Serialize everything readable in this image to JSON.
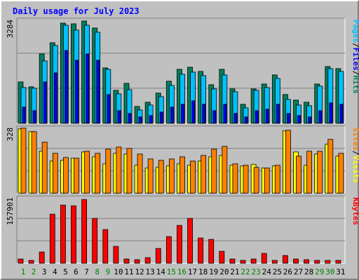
{
  "chart_data": {
    "type": "bar",
    "title": "Daily usage for July 2023",
    "categories": [
      "1",
      "2",
      "3",
      "4",
      "5",
      "6",
      "7",
      "8",
      "9",
      "10",
      "11",
      "12",
      "13",
      "14",
      "15",
      "16",
      "17",
      "18",
      "19",
      "20",
      "21",
      "22",
      "23",
      "24",
      "25",
      "26",
      "27",
      "28",
      "29",
      "30",
      "31"
    ],
    "weekend_days": [
      "1",
      "2",
      "8",
      "9",
      "15",
      "16",
      "22",
      "23",
      "29",
      "30"
    ],
    "colors": {
      "weekday_label": "#000000",
      "weekend_label": "#008000",
      "hits": "#00805c",
      "files": "#00c0ff",
      "pages": "#0000ff",
      "visits": "#ffff00",
      "sites": "#ff8000",
      "kbytes": "#ff0000",
      "title": "#0000ff"
    },
    "panels": [
      {
        "max_label": "3284",
        "ylim": [
          0,
          3284
        ],
        "side_labels": [
          "Pages",
          "/",
          "Files",
          "/",
          "Hits"
        ],
        "side_colors": [
          "#00c0ff",
          "#000000",
          "#0000ff",
          "#000000",
          "#00805c"
        ],
        "series": [
          {
            "name": "Hits",
            "color": "#00805c",
            "values": [
              1300,
              1160,
              2200,
              2560,
              3180,
              3160,
              3230,
              3010,
              1760,
              1040,
              1270,
              540,
              660,
              950,
              1330,
              1700,
              1770,
              1650,
              1230,
              1710,
              1090,
              600,
              1090,
              1250,
              1520,
              910,
              740,
              660,
              1240,
              1800,
              1720
            ]
          },
          {
            "name": "Files",
            "color": "#00c0ff",
            "values": [
              1140,
              1100,
              1980,
              2460,
              3100,
              2950,
              3100,
              2880,
              1700,
              940,
              1070,
              430,
              580,
              840,
              1200,
              1560,
              1620,
              1500,
              1090,
              1530,
              1000,
              490,
              1050,
              1130,
              1420,
              760,
              580,
              560,
              1180,
              1730,
              1640
            ]
          },
          {
            "name": "Pages",
            "color": "#0000ff",
            "values": [
              500,
              400,
              1300,
              1600,
              2300,
              2000,
              2200,
              2000,
              900,
              400,
              300,
              200,
              250,
              350,
              500,
              600,
              700,
              600,
              400,
              600,
              300,
              200,
              400,
              450,
              600,
              300,
              250,
              200,
              400,
              650,
              600
            ]
          }
        ]
      },
      {
        "max_label": "328",
        "ylim": [
          0,
          328
        ],
        "side_labels": [
          "Sites",
          "/",
          "Visits"
        ],
        "side_colors": [
          "#ff8000",
          "#000000",
          "#ffff00"
        ],
        "series": [
          {
            "name": "Visits",
            "color": "#ffff00",
            "values": [
              320,
              308,
              210,
              160,
              165,
              175,
              205,
              180,
              145,
              200,
              195,
              140,
              125,
              130,
              135,
              145,
              140,
              160,
              180,
              190,
              140,
              135,
              142,
              125,
              135,
              312,
              205,
              140,
              195,
              245,
              185
            ]
          },
          {
            "name": "Sites",
            "color": "#ff8000",
            "values": [
              326,
              306,
              255,
              200,
              178,
              175,
              210,
              200,
              220,
              230,
              225,
              195,
              170,
              165,
              170,
              180,
              160,
              190,
              220,
              235,
              145,
              140,
              130,
              125,
              140,
              315,
              185,
              210,
              210,
              270,
              200
            ]
          }
        ]
      },
      {
        "max_label": "157901",
        "ylim": [
          0,
          157901
        ],
        "side_labels": [
          "KBytes"
        ],
        "side_colors": [
          "#ff0000"
        ],
        "series": [
          {
            "name": "KBytes",
            "color": "#ff0000",
            "values": [
              9400,
              7200,
              27000,
              118000,
              139000,
              137000,
              153000,
              108000,
              80000,
              40000,
              9800,
              7800,
              14000,
              36000,
              63000,
              90000,
              108000,
              60000,
              57000,
              28000,
              9800,
              7200,
              9900,
              24000,
              6200,
              18000,
              10200,
              8000,
              6200,
              6000,
              6000
            ]
          }
        ]
      }
    ]
  }
}
